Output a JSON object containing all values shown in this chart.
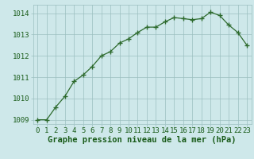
{
  "x": [
    0,
    1,
    2,
    3,
    4,
    5,
    6,
    7,
    8,
    9,
    10,
    11,
    12,
    13,
    14,
    15,
    16,
    17,
    18,
    19,
    20,
    21,
    22,
    23
  ],
  "y": [
    1009.0,
    1009.0,
    1009.6,
    1010.1,
    1010.8,
    1011.1,
    1011.5,
    1012.0,
    1012.2,
    1012.6,
    1012.8,
    1013.1,
    1013.35,
    1013.35,
    1013.6,
    1013.8,
    1013.75,
    1013.7,
    1013.75,
    1014.05,
    1013.9,
    1013.45,
    1013.1,
    1012.5
  ],
  "line_color": "#2d6a2d",
  "marker": "+",
  "marker_size": 4,
  "marker_linewidth": 1.0,
  "line_width": 0.9,
  "bg_color": "#cee8ea",
  "grid_color": "#9bbfbf",
  "xlabel": "Graphe pression niveau de la mer (hPa)",
  "xlabel_color": "#1a5c1a",
  "xlabel_fontsize": 7.5,
  "tick_color": "#1a5c1a",
  "tick_fontsize": 6.5,
  "ylim": [
    1008.8,
    1014.4
  ],
  "xlim": [
    -0.5,
    23.5
  ],
  "yticks": [
    1009,
    1010,
    1011,
    1012,
    1013,
    1014
  ],
  "xticks": [
    0,
    1,
    2,
    3,
    4,
    5,
    6,
    7,
    8,
    9,
    10,
    11,
    12,
    13,
    14,
    15,
    16,
    17,
    18,
    19,
    20,
    21,
    22,
    23
  ],
  "xtick_labels": [
    "0",
    "1",
    "2",
    "3",
    "4",
    "5",
    "6",
    "7",
    "8",
    "9",
    "10",
    "11",
    "12",
    "13",
    "14",
    "15",
    "16",
    "17",
    "18",
    "19",
    "20",
    "21",
    "22",
    "23"
  ]
}
